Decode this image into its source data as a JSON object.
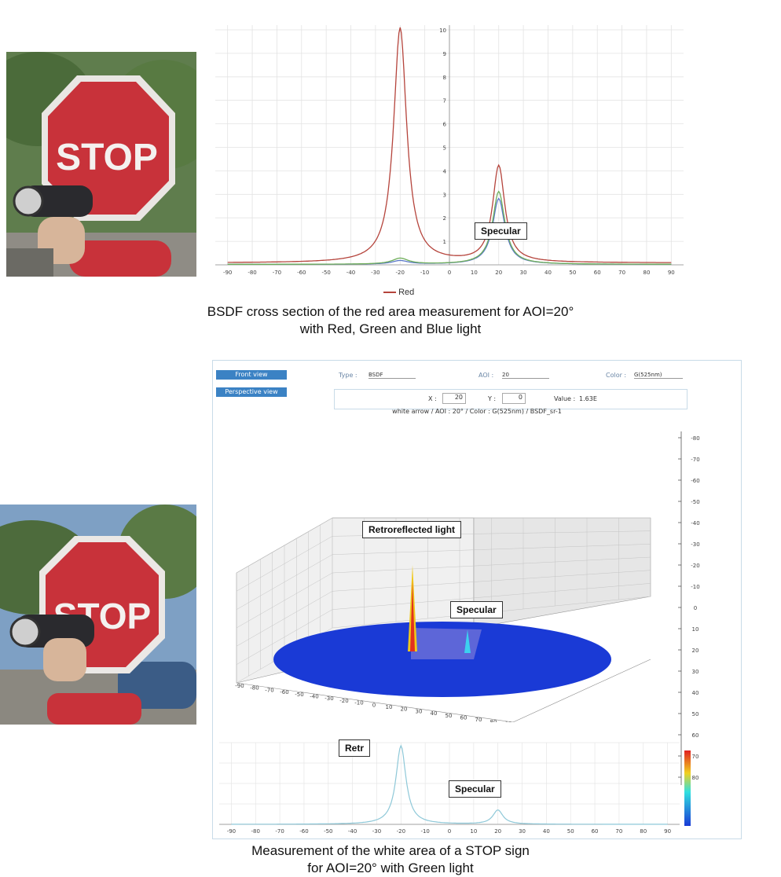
{
  "top": {
    "caption_line1": "BSDF cross section of the red area measurement for AOI=20°",
    "caption_line2": "with Red, Green and Blue light",
    "annotation_specular": "Specular",
    "legend_red": "Red",
    "photo_sign_text": "STOP"
  },
  "bottom": {
    "caption_line1": "Measurement of the white area of a STOP sign",
    "caption_line2": "for AOI=20° with Green light",
    "annotation_retroreflected": "Retroreflected light",
    "annotation_specular_3d": "Specular",
    "annotation_specular_2d": "Specular",
    "annotation_retro_2d": "Retr",
    "photo_sign_text": "STOP",
    "ui": {
      "btn_front_view": "Front view",
      "btn_perspective_view": "Perspective view",
      "type_label": "Type :",
      "type_value": "BSDF",
      "aoi_label": "AOI :",
      "aoi_value": "20",
      "color_label": "Color :",
      "color_value": "G(525nm)",
      "x_label": "X :",
      "x_value": "20",
      "y_label": "Y :",
      "y_value": "0",
      "value_label": "Value :",
      "value_value": "1.63E",
      "subtitle": "white arrow / AOI : 20° / Color : G(525nm) / BSDF_sr-1"
    }
  },
  "chart_data": [
    {
      "type": "line",
      "title": "",
      "xlabel": "",
      "ylabel": "",
      "xlim": [
        -95,
        95
      ],
      "ylim": [
        0,
        10
      ],
      "x_ticks": [
        -90,
        -80,
        -70,
        -60,
        -50,
        -40,
        -30,
        -20,
        -10,
        0,
        10,
        20,
        30,
        40,
        50,
        60,
        70,
        80,
        90
      ],
      "y_ticks": [
        1,
        2,
        3,
        4,
        5,
        6,
        7,
        8,
        9,
        10
      ],
      "legend": "bottom-left",
      "grid": true,
      "series": [
        {
          "name": "Red",
          "color": "#b5443c",
          "peaks": [
            {
              "center": -20,
              "height": 10,
              "width": 3.2
            },
            {
              "center": 20,
              "height": 4.1,
              "width": 3.0
            }
          ],
          "baseline": 0.08
        },
        {
          "color": "#6fae5a",
          "peaks": [
            {
              "center": -20,
              "height": 0.25,
              "width": 4
            },
            {
              "center": 20,
              "height": 3.1,
              "width": 3.0
            }
          ],
          "baseline": 0.02
        },
        {
          "color": "#5a78c8",
          "peaks": [
            {
              "center": -20,
              "height": 0.15,
              "width": 4
            },
            {
              "center": 20,
              "height": 2.8,
              "width": 3.0
            }
          ],
          "baseline": 0.02
        }
      ]
    },
    {
      "type": "line",
      "title": "",
      "xlim": [
        -95,
        95
      ],
      "x_ticks": [
        -90,
        -80,
        -70,
        -60,
        -50,
        -40,
        -30,
        -20,
        -10,
        0,
        10,
        20,
        30,
        40,
        50,
        60,
        70,
        80,
        90
      ],
      "y_ticks_right": [
        -80,
        -70,
        -60,
        -50,
        -40,
        -30,
        -20,
        -10,
        0,
        10,
        20,
        30,
        40,
        50,
        60,
        70,
        80
      ],
      "grid": true,
      "series": [
        {
          "color": "#8ec8d8",
          "peaks": [
            {
              "center": -20,
              "height": 1.0,
              "width": 2.5
            },
            {
              "center": 20,
              "height": 0.18,
              "width": 2.5
            }
          ],
          "baseline": 0.0
        }
      ]
    }
  ]
}
